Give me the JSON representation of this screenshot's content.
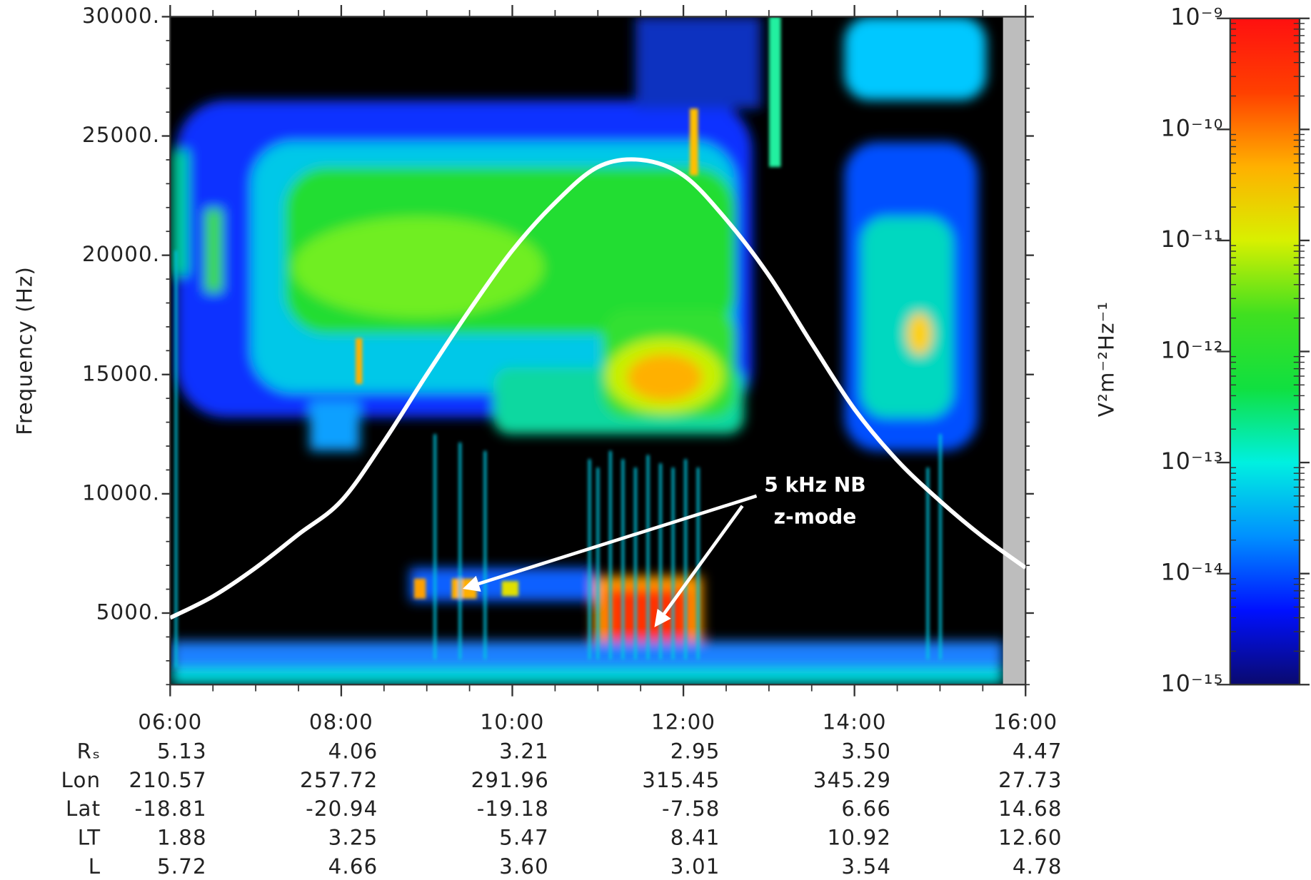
{
  "chart_data": {
    "type": "spectrogram",
    "ylabel": "Frequency (Hz)",
    "ylim": [
      2000,
      30000
    ],
    "yticks": [
      {
        "value": 5000,
        "label": "5000."
      },
      {
        "value": 10000,
        "label": "10000."
      },
      {
        "value": 15000,
        "label": "15000."
      },
      {
        "value": 20000,
        "label": "20000."
      },
      {
        "value": 25000,
        "label": "25000."
      },
      {
        "value": 30000,
        "label": "30000."
      }
    ],
    "xlim": [
      "06:00",
      "16:00"
    ],
    "xticks": [
      "06:00",
      "08:00",
      "10:00",
      "12:00",
      "14:00",
      "16:00"
    ],
    "curve": {
      "color": "#ffffff",
      "x": [
        "06:00",
        "06:30",
        "07:00",
        "07:30",
        "08:00",
        "08:30",
        "09:00",
        "09:30",
        "10:00",
        "10:30",
        "11:00",
        "11:30",
        "12:00",
        "12:30",
        "13:00",
        "13:30",
        "14:00",
        "14:30",
        "15:00",
        "15:30",
        "16:00"
      ],
      "y": [
        4800,
        5700,
        6900,
        8300,
        9700,
        12200,
        15000,
        17700,
        20200,
        22200,
        23700,
        24000,
        23350,
        21500,
        19150,
        16300,
        13550,
        11400,
        9700,
        8200,
        6900
      ]
    },
    "annotation": [
      "5 kHz NB",
      "z-mode"
    ],
    "colorbar": {
      "label": "V²m⁻²Hz⁻¹",
      "log": true,
      "lim": [
        1e-15,
        1e-09
      ],
      "ticks": [
        {
          "value": 1e-15,
          "label": "10⁻¹⁵"
        },
        {
          "value": 1e-14,
          "label": "10⁻¹⁴"
        },
        {
          "value": 1e-13,
          "label": "10⁻¹³"
        },
        {
          "value": 1e-12,
          "label": "10⁻¹²"
        },
        {
          "value": 1e-11,
          "label": "10⁻¹¹"
        },
        {
          "value": 1e-10,
          "label": "10⁻¹⁰"
        },
        {
          "value": 1e-09,
          "label": "10⁻⁹"
        }
      ],
      "colormap": [
        "#0a0a6e",
        "#0010ff",
        "#0090ff",
        "#00f0e0",
        "#10e040",
        "#40e020",
        "#d8f000",
        "#ffb000",
        "#ff4000",
        "#ff1010"
      ]
    },
    "ephemeris": [
      {
        "label": "Rₛ",
        "values": [
          "5.13",
          "4.06",
          "3.21",
          "2.95",
          "3.50",
          "4.47"
        ]
      },
      {
        "label": "Lon",
        "values": [
          "210.57",
          "257.72",
          "291.96",
          "315.45",
          "345.29",
          "27.73"
        ]
      },
      {
        "label": "Lat",
        "values": [
          "-18.81",
          "-20.94",
          "-19.18",
          "-7.58",
          "6.66",
          "14.68"
        ]
      },
      {
        "label": "LT",
        "values": [
          "1.88",
          "3.25",
          "5.47",
          "8.41",
          "10.92",
          "12.60"
        ]
      },
      {
        "label": "L",
        "values": [
          "5.72",
          "4.66",
          "3.60",
          "3.01",
          "3.54",
          "4.78"
        ]
      }
    ]
  }
}
